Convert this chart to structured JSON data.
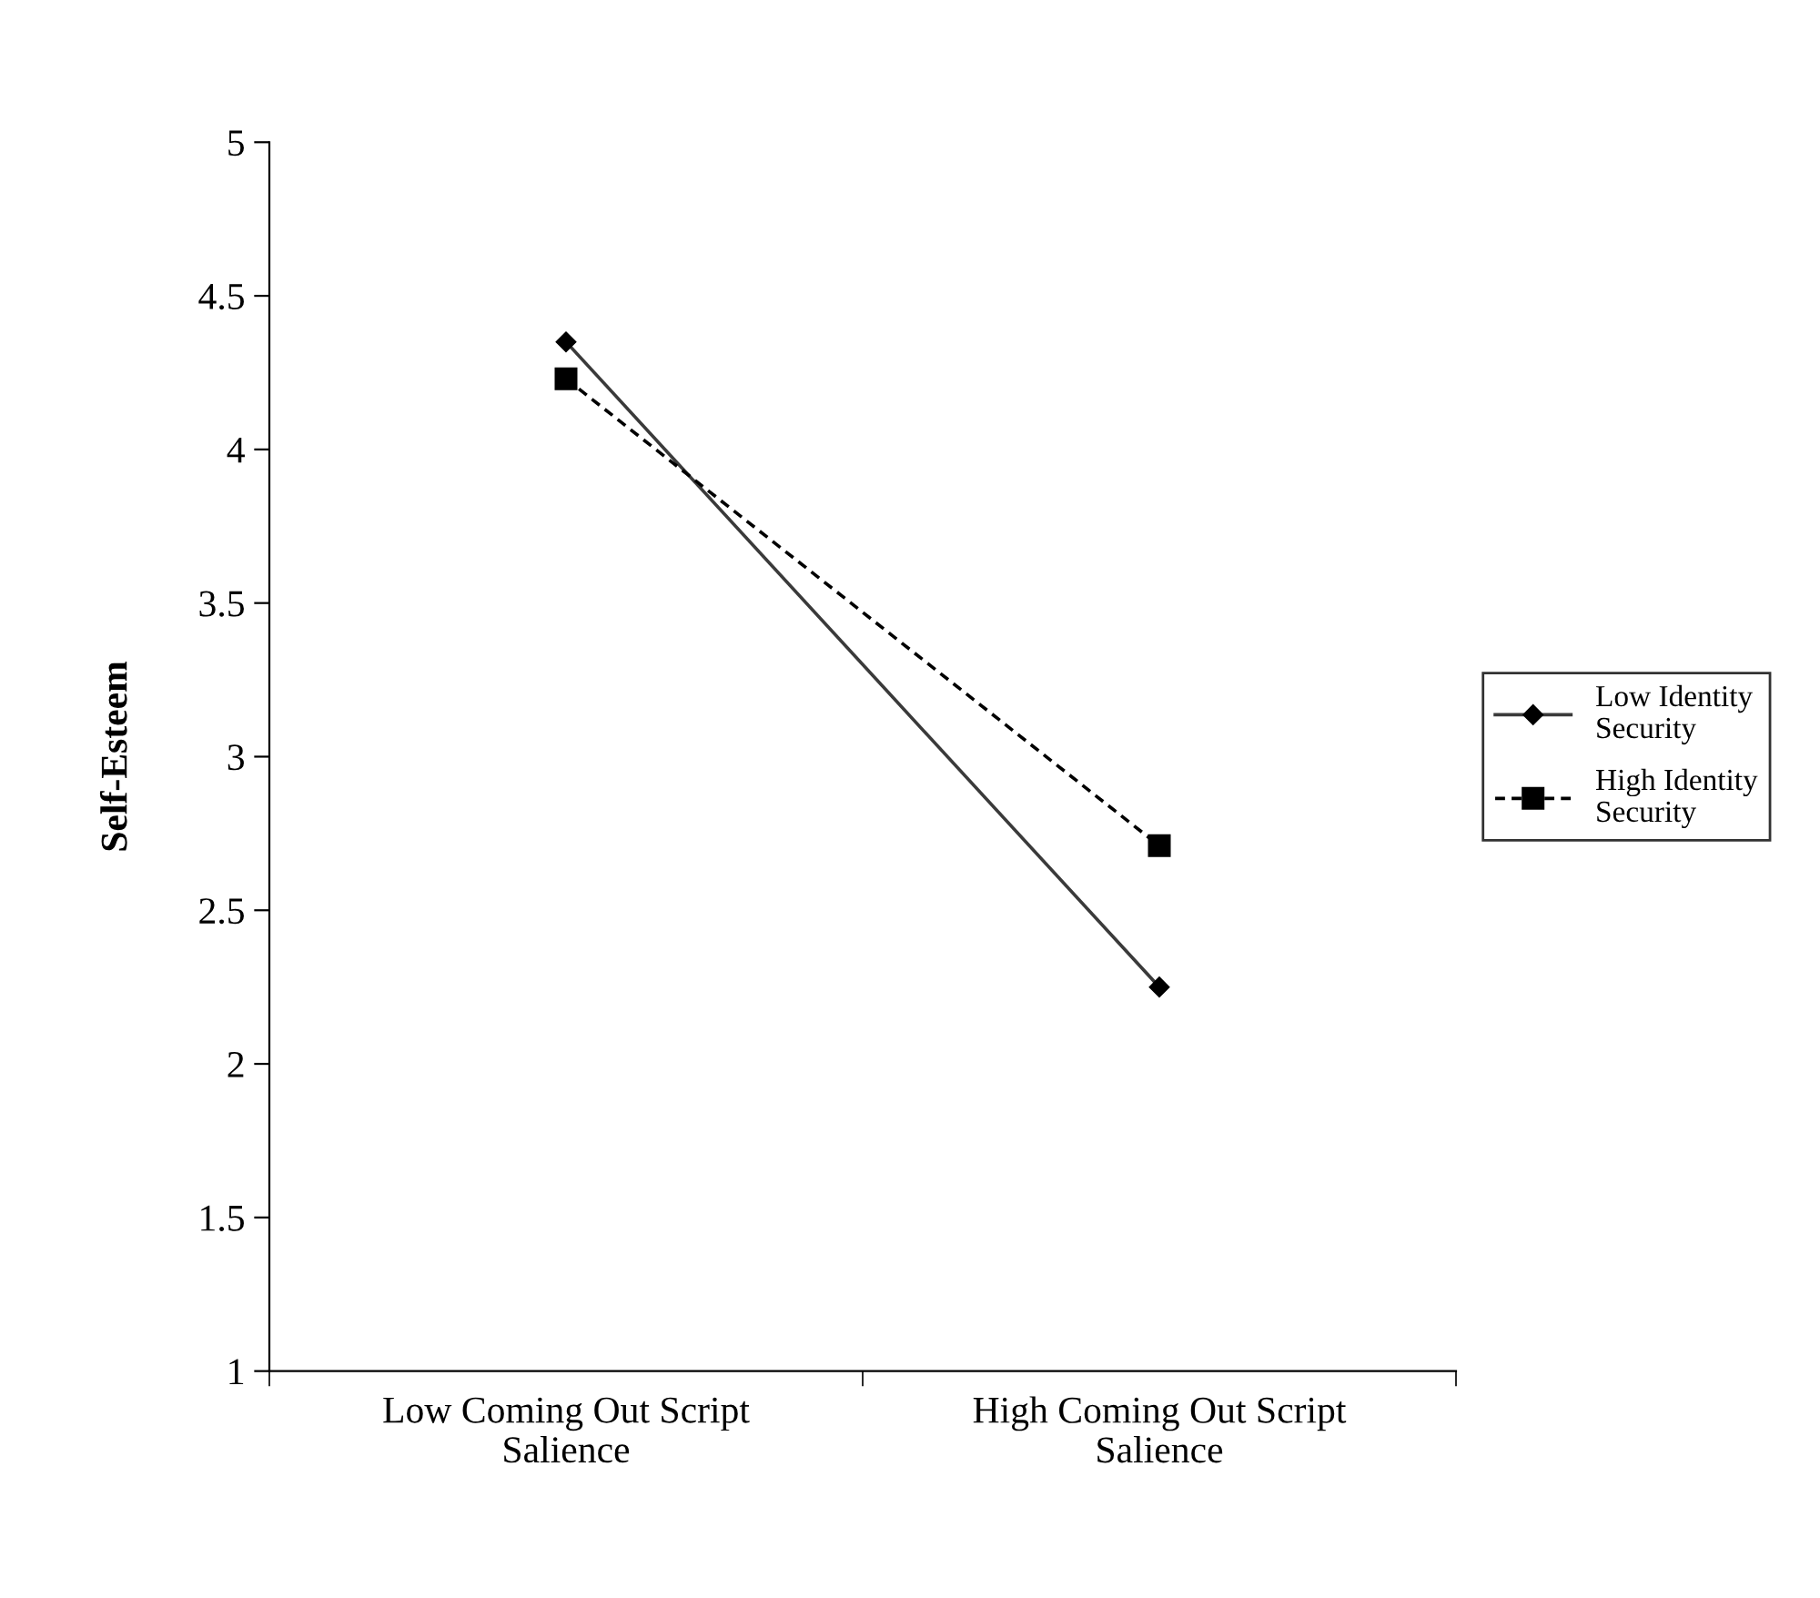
{
  "chart_data": {
    "type": "line",
    "ylabel": "Self-Esteem",
    "categories": [
      "Low Coming Out Script\nSalience",
      "High Coming Out Script\nSalience"
    ],
    "series": [
      {
        "name": "Low Identity\nSecurity",
        "color": "#3a3a3a",
        "values": [
          4.35,
          2.25
        ],
        "marker": "diamond",
        "line_style": "solid"
      },
      {
        "name": "High Identity\nSecurity",
        "color": "#000000",
        "values": [
          4.23,
          2.71
        ],
        "marker": "square",
        "line_style": "dashed"
      }
    ],
    "ylim": [
      1,
      5
    ],
    "yticks": [
      1,
      1.5,
      2,
      2.5,
      3,
      3.5,
      4,
      4.5,
      5
    ],
    "grid": false,
    "legend": "right"
  }
}
